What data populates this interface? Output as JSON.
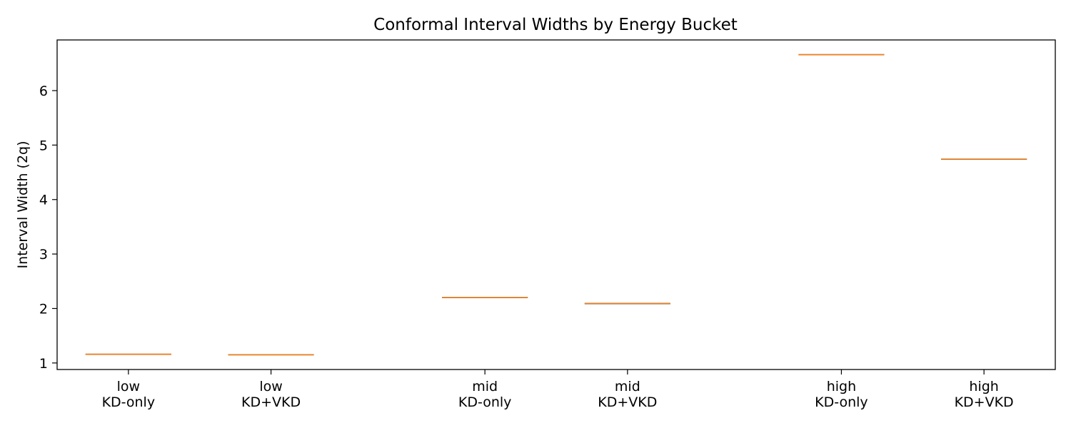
{
  "chart_data": {
    "type": "box",
    "title": "Conformal Interval Widths by Energy Bucket",
    "xlabel": "",
    "ylabel": "Interval Width (2q)",
    "ylim": [
      0.88,
      6.93
    ],
    "yticks": [
      1,
      2,
      3,
      4,
      5,
      6
    ],
    "grid": false,
    "categories": [
      {
        "bucket": "low",
        "method": "KD-only"
      },
      {
        "bucket": "low",
        "method": "KD+VKD"
      },
      {
        "bucket": "mid",
        "method": "KD-only"
      },
      {
        "bucket": "mid",
        "method": "KD+VKD"
      },
      {
        "bucket": "high",
        "method": "KD-only"
      },
      {
        "bucket": "high",
        "method": "KD+VKD"
      }
    ],
    "positions": [
      1,
      2,
      3.5,
      4.5,
      6,
      7
    ],
    "values": [
      1.16,
      1.15,
      2.2,
      2.09,
      6.66,
      4.74
    ],
    "colors": {
      "median": "#ff7f0e",
      "box": "#000000",
      "axes": "#000000"
    }
  }
}
